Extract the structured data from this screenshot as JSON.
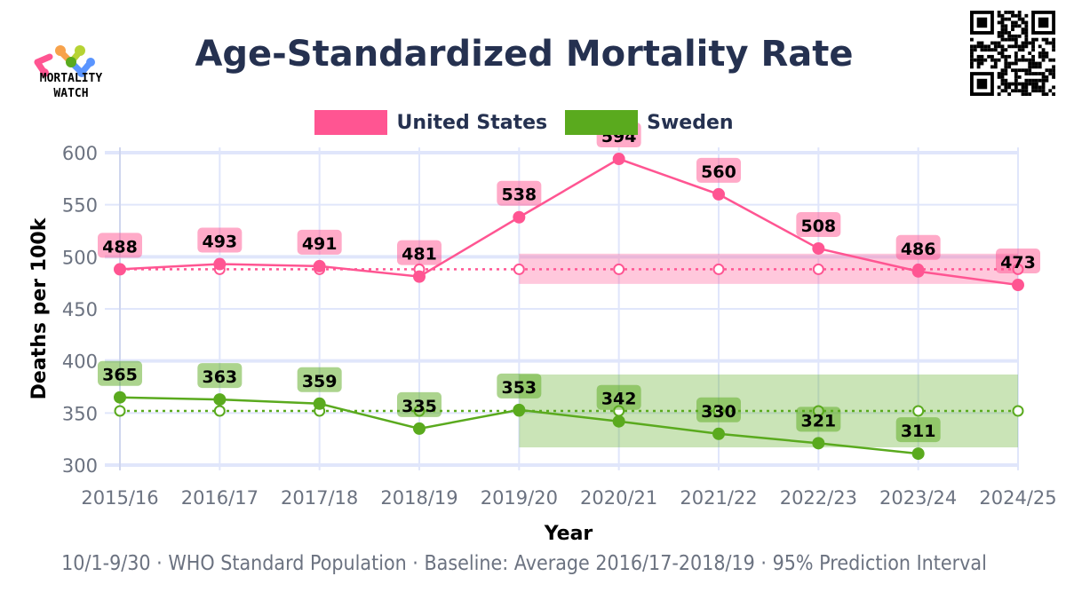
{
  "header": {
    "title": "Age-Standardized Mortality Rate",
    "logo_text_line1": "MORTALITY",
    "logo_text_line2": "WATCH"
  },
  "footer": {
    "subtitle": "10/1-9/30 · WHO Standard Population · Baseline: Average 2016/17-2018/19 · 95% Prediction Interval"
  },
  "chart_data": {
    "type": "line",
    "title": "Age-Standardized Mortality Rate",
    "xlabel": "Year",
    "ylabel": "Deaths per 100k",
    "ylim": [
      295,
      605
    ],
    "yticks": [
      300,
      350,
      400,
      450,
      500,
      550,
      600
    ],
    "grid": true,
    "legend_placement": "top",
    "categories": [
      "2015/16",
      "2016/17",
      "2017/18",
      "2018/19",
      "2019/20",
      "2020/21",
      "2021/22",
      "2022/23",
      "2023/24",
      "2024/25"
    ],
    "series": [
      {
        "name": "United States",
        "color": "#ff5592",
        "values": [
          488,
          493,
          491,
          481,
          538,
          594,
          560,
          508,
          486,
          473
        ],
        "baseline": [
          488,
          488,
          488,
          488,
          488,
          488,
          488,
          488,
          488,
          488
        ],
        "pi_from": "2019/20",
        "pi_lower": 474,
        "pi_upper": 503
      },
      {
        "name": "Sweden",
        "color": "#5aaa1e",
        "values": [
          365,
          363,
          359,
          335,
          353,
          342,
          330,
          321,
          311,
          null
        ],
        "baseline": [
          352,
          352,
          352,
          352,
          352,
          352,
          352,
          352,
          352,
          352
        ],
        "pi_from": "2019/20",
        "pi_lower": 317,
        "pi_upper": 387
      }
    ]
  }
}
